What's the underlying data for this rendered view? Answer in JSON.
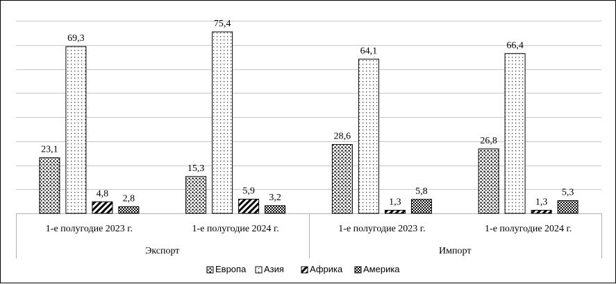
{
  "chart_data": {
    "type": "bar",
    "groups": [
      {
        "label": "Экспорт",
        "categories": [
          "1-е полугодие 2023 г.",
          "1-е полугодие 2024 г."
        ]
      },
      {
        "label": "Импорт",
        "categories": [
          "1-е полугодие 2023 г.",
          "1-е полугодие 2024 г."
        ]
      }
    ],
    "categories": [
      "1-е полугодие 2023 г.",
      "1-е полугодие 2024 г.",
      "1-е полугодие 2023 г.",
      "1-е полугодие 2024 г."
    ],
    "series": [
      {
        "name": "Европа",
        "values": [
          23.1,
          15.3,
          28.6,
          26.8
        ],
        "value_labels": [
          "23,1",
          "15,3",
          "28,6",
          "26,8"
        ],
        "pattern": "dots-dense"
      },
      {
        "name": "Азия",
        "values": [
          69.3,
          75.4,
          64.1,
          66.4
        ],
        "value_labels": [
          "69,3",
          "75,4",
          "64,1",
          "66,4"
        ],
        "pattern": "dots-sparse"
      },
      {
        "name": "Африка",
        "values": [
          4.8,
          5.9,
          1.3,
          1.3
        ],
        "value_labels": [
          "4,8",
          "5,9",
          "1,3",
          "1,3"
        ],
        "pattern": "diagonal-stripes"
      },
      {
        "name": "Америка",
        "values": [
          2.8,
          3.2,
          5.8,
          5.3
        ],
        "value_labels": [
          "2,8",
          "3,2",
          "5,8",
          "5,3"
        ],
        "pattern": "checker"
      }
    ],
    "ylim": [
      0,
      80
    ],
    "y_gridline_step": 10,
    "grid": true,
    "legend_position": "bottom",
    "title": "",
    "xlabel": "",
    "ylabel": ""
  }
}
